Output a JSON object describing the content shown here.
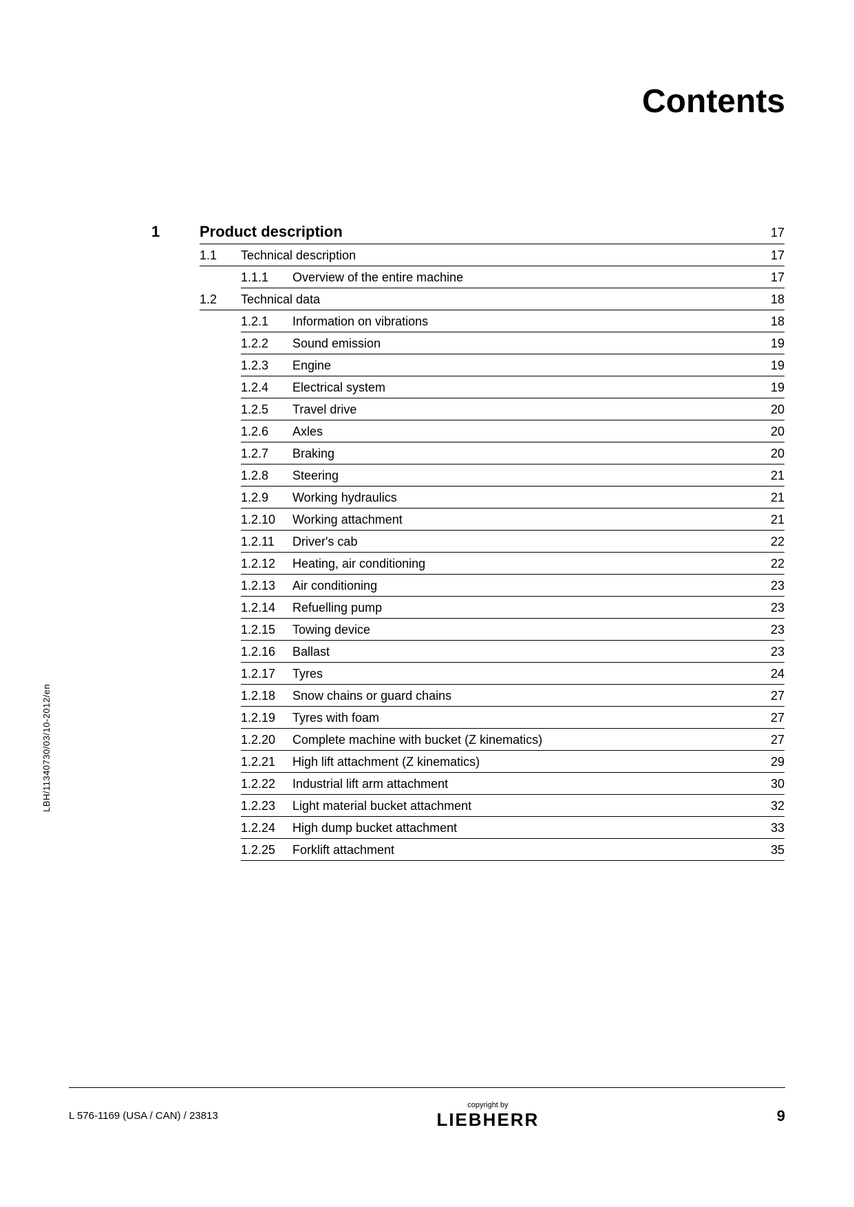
{
  "title": "Contents",
  "sidenote": "LBH/11340730/03/10-2012/en",
  "footer": {
    "left": "L 576-1169 (USA / CAN) / 23813",
    "copyright": "copyright by",
    "brand": "LIEBHERR",
    "page": "9"
  },
  "chapter": {
    "num": "1",
    "text": "Product description",
    "pg": "17"
  },
  "sections": [
    {
      "num": "1.1",
      "text": "Technical description",
      "pg": "17",
      "subs": [
        {
          "num": "1.1.1",
          "text": "Overview of the entire machine",
          "pg": "17"
        }
      ]
    },
    {
      "num": "1.2",
      "text": "Technical data",
      "pg": "18",
      "subs": [
        {
          "num": "1.2.1",
          "text": "Information on vibrations",
          "pg": "18"
        },
        {
          "num": "1.2.2",
          "text": "Sound emission",
          "pg": "19"
        },
        {
          "num": "1.2.3",
          "text": "Engine",
          "pg": "19"
        },
        {
          "num": "1.2.4",
          "text": "Electrical system",
          "pg": "19"
        },
        {
          "num": "1.2.5",
          "text": "Travel drive",
          "pg": "20"
        },
        {
          "num": "1.2.6",
          "text": "Axles",
          "pg": "20"
        },
        {
          "num": "1.2.7",
          "text": "Braking",
          "pg": "20"
        },
        {
          "num": "1.2.8",
          "text": "Steering",
          "pg": "21"
        },
        {
          "num": "1.2.9",
          "text": "Working hydraulics",
          "pg": "21"
        },
        {
          "num": "1.2.10",
          "text": "Working attachment",
          "pg": "21"
        },
        {
          "num": "1.2.11",
          "text": "Driver's cab",
          "pg": "22"
        },
        {
          "num": "1.2.12",
          "text": "Heating, air conditioning",
          "pg": "22"
        },
        {
          "num": "1.2.13",
          "text": "Air conditioning",
          "pg": "23"
        },
        {
          "num": "1.2.14",
          "text": "Refuelling pump",
          "pg": "23"
        },
        {
          "num": "1.2.15",
          "text": "Towing device",
          "pg": "23"
        },
        {
          "num": "1.2.16",
          "text": "Ballast",
          "pg": "23"
        },
        {
          "num": "1.2.17",
          "text": "Tyres",
          "pg": "24"
        },
        {
          "num": "1.2.18",
          "text": "Snow chains or guard chains",
          "pg": "27"
        },
        {
          "num": "1.2.19",
          "text": "Tyres with foam",
          "pg": "27"
        },
        {
          "num": "1.2.20",
          "text": "Complete machine with bucket (Z kinematics)",
          "pg": "27"
        },
        {
          "num": "1.2.21",
          "text": "High lift attachment (Z kinematics)",
          "pg": "29"
        },
        {
          "num": "1.2.22",
          "text": "Industrial lift arm attachment",
          "pg": "30"
        },
        {
          "num": "1.2.23",
          "text": "Light material bucket attachment",
          "pg": "32"
        },
        {
          "num": "1.2.24",
          "text": "High dump bucket attachment",
          "pg": "33"
        },
        {
          "num": "1.2.25",
          "text": "Forklift attachment",
          "pg": "35"
        }
      ]
    }
  ]
}
